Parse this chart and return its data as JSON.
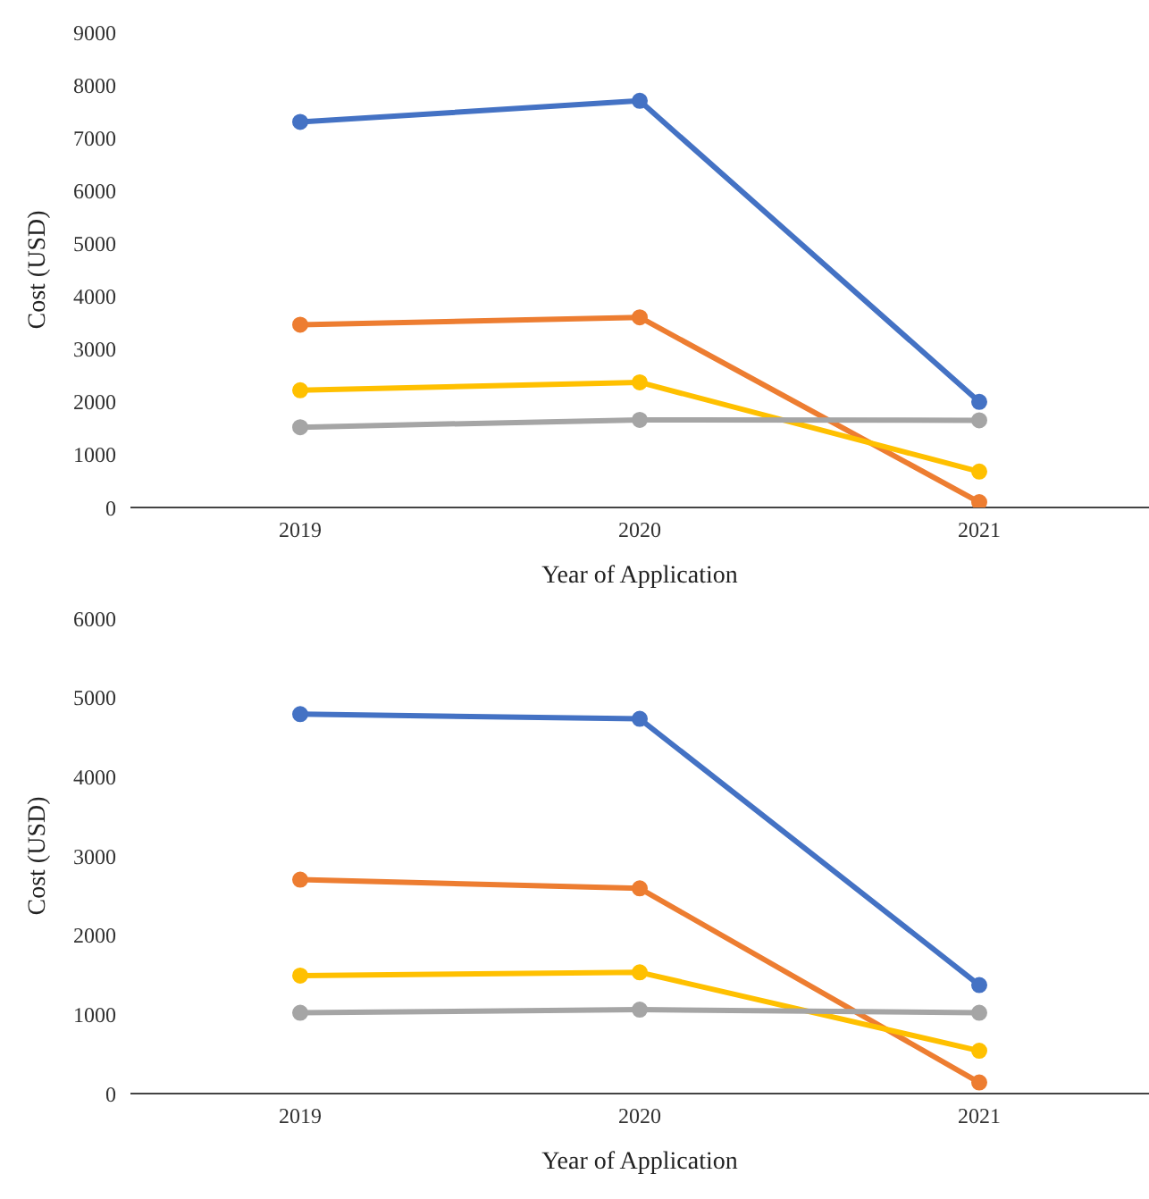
{
  "chart_data": [
    {
      "type": "line",
      "xlabel": "Year of Application",
      "ylabel": "Cost (USD)",
      "categories": [
        "2019",
        "2020",
        "2021"
      ],
      "ylim": [
        0,
        9000
      ],
      "yticks": [
        0,
        1000,
        2000,
        3000,
        4000,
        5000,
        6000,
        7000,
        8000,
        9000
      ],
      "grid": false,
      "legend": false,
      "marker": "circle",
      "line_style": "solid",
      "series": [
        {
          "color": "#4472c4",
          "values": [
            7300,
            7700,
            2000
          ]
        },
        {
          "color": "#ed7d31",
          "values": [
            3460,
            3600,
            100
          ]
        },
        {
          "color": "#ffc000",
          "values": [
            2220,
            2370,
            680
          ]
        },
        {
          "color": "#a5a5a5",
          "values": [
            1520,
            1660,
            1650
          ]
        }
      ]
    },
    {
      "type": "line",
      "xlabel": "Year of Application",
      "ylabel": "Cost (USD)",
      "categories": [
        "2019",
        "2020",
        "2021"
      ],
      "ylim": [
        0,
        6000
      ],
      "yticks": [
        0,
        1000,
        2000,
        3000,
        4000,
        5000,
        6000
      ],
      "grid": false,
      "legend": false,
      "marker": "circle",
      "line_style": "solid",
      "series": [
        {
          "color": "#4472c4",
          "values": [
            4790,
            4730,
            1370
          ]
        },
        {
          "color": "#ed7d31",
          "values": [
            2700,
            2590,
            140
          ]
        },
        {
          "color": "#ffc000",
          "values": [
            1490,
            1530,
            540
          ]
        },
        {
          "color": "#a5a5a5",
          "values": [
            1020,
            1060,
            1020
          ]
        }
      ]
    }
  ]
}
